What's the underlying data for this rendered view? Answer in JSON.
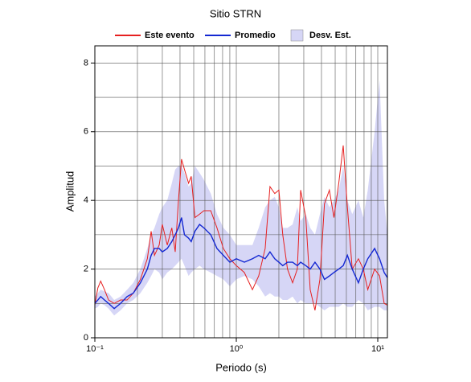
{
  "chart_data": {
    "type": "line",
    "title": "Sitio STRN",
    "xlabel": "Periodo (s)",
    "ylabel": "Amplitud",
    "xlog": true,
    "grid": true,
    "xlim": [
      0.1,
      11.7
    ],
    "ylim": [
      0,
      8.5
    ],
    "xticks": [
      {
        "value": 0.1,
        "label": "10⁻¹"
      },
      {
        "value": 1,
        "label": "10⁰"
      },
      {
        "value": 10,
        "label": "10¹"
      }
    ],
    "xminor": [
      0.2,
      0.3,
      0.4,
      0.5,
      0.6,
      0.7,
      0.8,
      0.9,
      2,
      3,
      4,
      5,
      6,
      7,
      8,
      9
    ],
    "yticks": [
      0,
      2,
      4,
      6,
      8
    ],
    "yminor": [
      1,
      3,
      5,
      7
    ],
    "x": [
      0.1,
      0.105,
      0.11,
      0.117,
      0.125,
      0.137,
      0.152,
      0.169,
      0.187,
      0.21,
      0.235,
      0.25,
      0.264,
      0.285,
      0.3,
      0.325,
      0.35,
      0.37,
      0.39,
      0.41,
      0.43,
      0.46,
      0.48,
      0.51,
      0.55,
      0.59,
      0.66,
      0.73,
      0.81,
      0.9,
      1.0,
      1.14,
      1.3,
      1.44,
      1.6,
      1.73,
      1.87,
      2.0,
      2.13,
      2.3,
      2.5,
      2.7,
      2.85,
      3.1,
      3.33,
      3.6,
      3.9,
      4.2,
      4.55,
      4.9,
      5.3,
      5.7,
      6.1,
      6.6,
      7.3,
      7.9,
      8.5,
      9.5,
      10.3,
      11.1,
      11.7
    ],
    "series": [
      {
        "name": "Este evento",
        "kind": "line",
        "color": "#e62020",
        "values": [
          0.95,
          1.45,
          1.65,
          1.4,
          1.1,
          1.0,
          1.1,
          1.1,
          1.3,
          1.7,
          2.3,
          3.1,
          2.4,
          2.7,
          3.3,
          2.7,
          3.2,
          2.5,
          4.0,
          5.2,
          4.9,
          4.5,
          4.7,
          3.5,
          3.6,
          3.7,
          3.7,
          3.2,
          2.6,
          2.3,
          2.1,
          1.9,
          1.4,
          1.8,
          2.6,
          4.4,
          4.2,
          4.3,
          3.0,
          2.0,
          1.6,
          2.0,
          4.3,
          3.5,
          1.4,
          0.8,
          1.7,
          3.9,
          4.3,
          3.5,
          4.5,
          5.6,
          3.8,
          2.0,
          2.3,
          2.0,
          1.4,
          2.0,
          1.8,
          1.0,
          0.95
        ]
      },
      {
        "name": "Promedio",
        "kind": "line",
        "color": "#1428d2",
        "values": [
          1.0,
          1.1,
          1.2,
          1.1,
          1.0,
          0.85,
          1.0,
          1.2,
          1.3,
          1.6,
          2.0,
          2.4,
          2.6,
          2.6,
          2.5,
          2.6,
          2.8,
          3.0,
          3.2,
          3.5,
          3.0,
          2.9,
          2.8,
          3.1,
          3.3,
          3.2,
          3.0,
          2.6,
          2.4,
          2.2,
          2.3,
          2.2,
          2.3,
          2.4,
          2.3,
          2.5,
          2.3,
          2.2,
          2.1,
          2.2,
          2.2,
          2.1,
          2.2,
          2.1,
          2.0,
          2.2,
          2.0,
          1.7,
          1.8,
          1.9,
          2.0,
          2.1,
          2.4,
          2.0,
          1.6,
          2.0,
          2.3,
          2.6,
          2.3,
          1.9,
          1.75
        ]
      },
      {
        "name": "Desv. Est.",
        "kind": "band",
        "color": "#d6d6f6",
        "lower": [
          0.85,
          0.9,
          1.0,
          0.95,
          0.85,
          0.65,
          0.8,
          1.0,
          1.1,
          1.3,
          1.6,
          1.8,
          2.0,
          1.9,
          1.7,
          1.9,
          2.0,
          2.1,
          2.2,
          2.3,
          2.1,
          1.8,
          1.9,
          2.0,
          2.1,
          2.0,
          1.9,
          1.8,
          1.7,
          1.5,
          1.7,
          1.8,
          1.7,
          1.5,
          1.2,
          1.3,
          1.2,
          1.2,
          1.1,
          1.1,
          1.2,
          1.0,
          1.1,
          1.0,
          1.0,
          1.0,
          0.9,
          0.8,
          0.9,
          0.9,
          0.9,
          1.0,
          0.9,
          0.9,
          1.1,
          1.0,
          0.8,
          0.9,
          0.9,
          0.8,
          0.8
        ],
        "upper": [
          1.2,
          1.3,
          1.4,
          1.35,
          1.3,
          1.1,
          1.2,
          1.4,
          1.6,
          2.0,
          2.6,
          3.0,
          3.2,
          3.6,
          3.8,
          4.0,
          4.5,
          4.9,
          5.0,
          5.0,
          4.8,
          4.4,
          4.5,
          5.0,
          4.8,
          4.6,
          4.2,
          3.6,
          3.2,
          3.0,
          2.7,
          2.7,
          2.7,
          3.2,
          3.8,
          4.0,
          4.1,
          3.8,
          3.2,
          3.2,
          3.3,
          3.8,
          3.4,
          3.6,
          3.2,
          3.0,
          3.6,
          4.1,
          3.8,
          4.0,
          4.3,
          5.0,
          4.0,
          3.6,
          4.0,
          3.5,
          4.3,
          6.0,
          7.5,
          4.0,
          3.0
        ]
      }
    ]
  }
}
